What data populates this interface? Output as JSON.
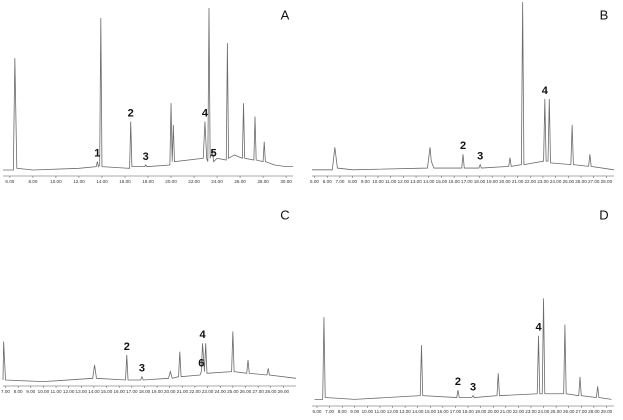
{
  "chart_data": [
    {
      "type": "line",
      "title": "A",
      "color": "#6b6b6b",
      "xlim": [
        5.4,
        30.6
      ],
      "ylim": [
        0,
        100
      ],
      "xticks": [
        {
          "value": 6,
          "label": "6.00"
        },
        {
          "value": 8,
          "label": "8.00"
        },
        {
          "value": 10,
          "label": "10.00"
        },
        {
          "value": 12,
          "label": "12.00"
        },
        {
          "value": 14,
          "label": "14.00"
        },
        {
          "value": 16,
          "label": "16.00"
        },
        {
          "value": 18,
          "label": "18.00"
        },
        {
          "value": 20,
          "label": "20.00"
        },
        {
          "value": 22,
          "label": "22.00"
        },
        {
          "value": 24,
          "label": "24.00"
        },
        {
          "value": 26,
          "label": "26.00"
        },
        {
          "value": 28,
          "label": "28.00"
        },
        {
          "value": 30,
          "label": "30.00"
        }
      ],
      "x": [
        5.4,
        6.3,
        6.43,
        6.6,
        8,
        12,
        13.5,
        13.6,
        13.7,
        13.8,
        13.9,
        14.0,
        16.4,
        16.5,
        16.6,
        17.7,
        17.8,
        17.9,
        19.9,
        20.0,
        20.1,
        20.2,
        20.3,
        22.8,
        22.95,
        23.1,
        23.2,
        23.3,
        23.4,
        23.6,
        23.7,
        24.0,
        24.8,
        24.9,
        25.0,
        25.5,
        26.2,
        26.3,
        26.4,
        27.2,
        27.3,
        27.4,
        28,
        28.1,
        28.2,
        29,
        30,
        30.6
      ],
      "values": [
        3,
        3,
        70,
        4,
        3,
        4,
        5,
        8,
        5,
        6,
        94,
        5,
        4,
        32,
        5,
        5,
        6,
        5,
        6,
        43,
        8,
        30,
        8,
        10,
        32,
        10,
        8,
        100,
        10,
        15,
        8,
        10,
        9,
        79,
        10,
        12,
        10,
        43,
        10,
        9,
        35,
        9,
        8,
        20,
        8,
        6,
        5,
        5
      ],
      "annotations": [
        {
          "text": "1",
          "x": 13.6
        },
        {
          "text": "2",
          "x": 16.5
        },
        {
          "text": "3",
          "x": 17.8
        },
        {
          "text": "4",
          "x": 22.95
        },
        {
          "text": "5",
          "x": 23.7
        }
      ]
    },
    {
      "type": "line",
      "title": "B",
      "color": "#6b6b6b",
      "xlim": [
        4.8,
        28.6
      ],
      "ylim": [
        0,
        100
      ],
      "xticks": [
        {
          "value": 5,
          "label": "5.00"
        },
        {
          "value": 6,
          "label": "6.00"
        },
        {
          "value": 7,
          "label": "7.00"
        },
        {
          "value": 8,
          "label": "8.00"
        },
        {
          "value": 9,
          "label": "9.00"
        },
        {
          "value": 10,
          "label": "10.00"
        },
        {
          "value": 11,
          "label": "11.00"
        },
        {
          "value": 12,
          "label": "12.00"
        },
        {
          "value": 13,
          "label": "13.00"
        },
        {
          "value": 14,
          "label": "14.00"
        },
        {
          "value": 15,
          "label": "15.00"
        },
        {
          "value": 16,
          "label": "16.00"
        },
        {
          "value": 17,
          "label": "17.00"
        },
        {
          "value": 18,
          "label": "18.00"
        },
        {
          "value": 19,
          "label": "19.00"
        },
        {
          "value": 20,
          "label": "20.00"
        },
        {
          "value": 21,
          "label": "21.00"
        },
        {
          "value": 22,
          "label": "22.00"
        },
        {
          "value": 23,
          "label": "23.00"
        },
        {
          "value": 24,
          "label": "24.00"
        },
        {
          "value": 25,
          "label": "25.00"
        },
        {
          "value": 26,
          "label": "26.00"
        },
        {
          "value": 27,
          "label": "27.00"
        },
        {
          "value": 28,
          "label": "28.00"
        }
      ],
      "x": [
        4.8,
        6.4,
        6.6,
        6.8,
        8,
        13.9,
        14.1,
        14.2,
        14.4,
        16.6,
        16.7,
        16.8,
        17.95,
        18.05,
        18.15,
        20.3,
        20.4,
        20.5,
        21.3,
        21.4,
        21.5,
        23.05,
        23.15,
        23.25,
        23.4,
        23.5,
        23.6,
        25.2,
        25.3,
        25.4,
        26.6,
        26.7,
        26.8,
        28.6
      ],
      "values": [
        3,
        3,
        16,
        4,
        3,
        4,
        16,
        8,
        4,
        4,
        12,
        4,
        4,
        6,
        4,
        5,
        10,
        5,
        6,
        100,
        6,
        8,
        44,
        8,
        8,
        44,
        7,
        6,
        29,
        6,
        5,
        12,
        5,
        3
      ],
      "annotations": [
        {
          "text": "2",
          "x": 16.7
        },
        {
          "text": "3",
          "x": 18.05
        },
        {
          "text": "4",
          "x": 23.15
        }
      ]
    },
    {
      "type": "line",
      "title": "C",
      "color": "#6b6b6b",
      "xlim": [
        6.8,
        30
      ],
      "ylim": [
        0,
        100
      ],
      "xticks": [
        {
          "value": 7,
          "label": "7.00"
        },
        {
          "value": 8,
          "label": "8.00"
        },
        {
          "value": 9,
          "label": "9.00"
        },
        {
          "value": 10,
          "label": "10.00"
        },
        {
          "value": 11,
          "label": "11.00"
        },
        {
          "value": 12,
          "label": "12.00"
        },
        {
          "value": 13,
          "label": "13.00"
        },
        {
          "value": 14,
          "label": "14.00"
        },
        {
          "value": 15,
          "label": "15.00"
        },
        {
          "value": 16,
          "label": "16.00"
        },
        {
          "value": 17,
          "label": "17.00"
        },
        {
          "value": 18,
          "label": "18.00"
        },
        {
          "value": 19,
          "label": "19.00"
        },
        {
          "value": 20,
          "label": "20.00"
        },
        {
          "value": 21,
          "label": "21.00"
        },
        {
          "value": 22,
          "label": "22.00"
        },
        {
          "value": 23,
          "label": "23.00"
        },
        {
          "value": 24,
          "label": "24.00"
        },
        {
          "value": 25,
          "label": "25.00"
        },
        {
          "value": 26,
          "label": "26.00"
        },
        {
          "value": 27,
          "label": "27.00"
        },
        {
          "value": 28,
          "label": "28.00"
        },
        {
          "value": 29,
          "label": "29.00"
        }
      ],
      "x": [
        6.8,
        6.85,
        7.0,
        10,
        13.9,
        14.05,
        14.2,
        16.5,
        16.6,
        16.7,
        17.7,
        17.8,
        17.9,
        19.9,
        20.05,
        20.2,
        20.7,
        20.8,
        20.9,
        22.4,
        22.5,
        22.6,
        22.75,
        22.85,
        22.95,
        24.9,
        25.0,
        25.1,
        26.1,
        26.2,
        26.3,
        27.7,
        27.8,
        27.9,
        30
      ],
      "values": [
        3,
        26,
        3,
        2,
        4,
        12,
        4,
        3,
        18,
        3,
        3,
        5,
        3,
        4,
        8,
        4,
        5,
        20,
        5,
        6,
        8,
        25,
        8,
        25,
        7,
        8,
        32,
        8,
        7,
        15,
        7,
        6,
        10,
        6,
        4
      ],
      "annotations": [
        {
          "text": "2",
          "x": 16.6
        },
        {
          "text": "3",
          "x": 17.8
        },
        {
          "text": "6",
          "x": 22.5
        },
        {
          "text": "4",
          "x": 22.6
        }
      ]
    },
    {
      "type": "line",
      "title": "D",
      "color": "#6b6b6b",
      "xlim": [
        5.6,
        29.6
      ],
      "ylim": [
        0,
        100
      ],
      "xticks": [
        {
          "value": 6,
          "label": "6.00"
        },
        {
          "value": 7,
          "label": "7.00"
        },
        {
          "value": 8,
          "label": "8.00"
        },
        {
          "value": 9,
          "label": "9.00"
        },
        {
          "value": 10,
          "label": "10.00"
        },
        {
          "value": 11,
          "label": "11.00"
        },
        {
          "value": 12,
          "label": "12.00"
        },
        {
          "value": 13,
          "label": "13.00"
        },
        {
          "value": 14,
          "label": "14.00"
        },
        {
          "value": 15,
          "label": "15.00"
        },
        {
          "value": 16,
          "label": "16.00"
        },
        {
          "value": 17,
          "label": "17.00"
        },
        {
          "value": 18,
          "label": "18.00"
        },
        {
          "value": 19,
          "label": "19.00"
        },
        {
          "value": 20,
          "label": "20.00"
        },
        {
          "value": 21,
          "label": "21.00"
        },
        {
          "value": 22,
          "label": "22.00"
        },
        {
          "value": 23,
          "label": "23.00"
        },
        {
          "value": 24,
          "label": "24.00"
        },
        {
          "value": 25,
          "label": "25.00"
        },
        {
          "value": 26,
          "label": "26.00"
        },
        {
          "value": 27,
          "label": "27.00"
        },
        {
          "value": 28,
          "label": "28.00"
        },
        {
          "value": 29,
          "label": "29.00"
        }
      ],
      "x": [
        5.8,
        6.45,
        6.55,
        6.65,
        9,
        14.2,
        14.3,
        14.4,
        17.1,
        17.2,
        17.3,
        18.3,
        18.4,
        18.5,
        20.3,
        20.4,
        20.5,
        23.5,
        23.6,
        23.7,
        23.9,
        24.0,
        24.1,
        25.6,
        25.7,
        25.8,
        26.8,
        26.9,
        27.0,
        28.2,
        28.3,
        28.4,
        29.4
      ],
      "values": [
        3,
        3,
        47,
        4,
        3,
        5,
        32,
        5,
        4,
        8,
        4,
        4,
        5,
        4,
        5,
        17,
        5,
        6,
        37,
        6,
        6,
        57,
        6,
        6,
        43,
        6,
        5,
        15,
        5,
        4,
        10,
        4,
        3
      ],
      "annotations": [
        {
          "text": "2",
          "x": 17.2
        },
        {
          "text": "3",
          "x": 18.4
        },
        {
          "text": "4",
          "x": 23.6
        }
      ]
    }
  ]
}
